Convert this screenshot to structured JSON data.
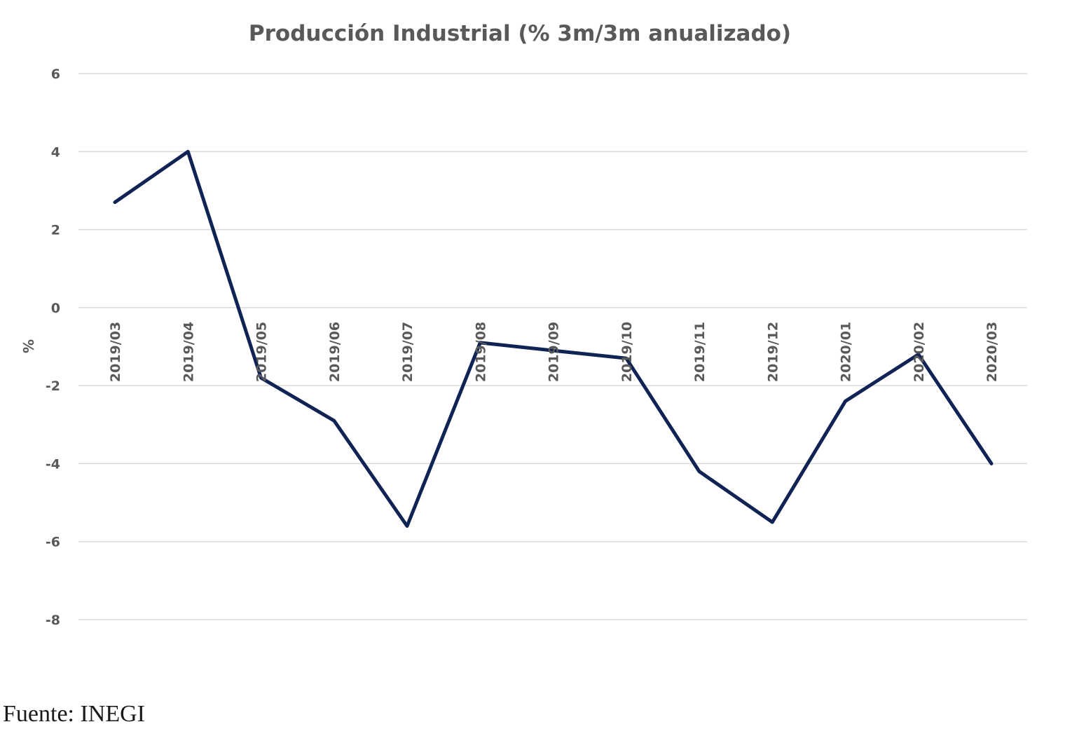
{
  "chart_data": {
    "type": "line",
    "title": "Producción Industrial (% 3m/3m anualizado)",
    "ylabel": "%",
    "xlabel": "",
    "ylim": [
      -8,
      6
    ],
    "yticks": [
      "6",
      "4",
      "2",
      "0",
      "-2",
      "-4",
      "-6",
      "-8"
    ],
    "ytick_values": [
      6,
      4,
      2,
      0,
      -2,
      -4,
      -6,
      -8
    ],
    "grid": true,
    "categories": [
      "2019/03",
      "2019/04",
      "2019/05",
      "2019/06",
      "2019/07",
      "2019/08",
      "2019/09",
      "2019/10",
      "2019/11",
      "2019/12",
      "2020/01",
      "2020/02",
      "2020/03"
    ],
    "series": [
      {
        "values": [
          2.7,
          4.0,
          -1.8,
          -2.9,
          -5.6,
          -0.9,
          -1.1,
          -1.3,
          -4.2,
          -5.5,
          -2.4,
          -1.2,
          -4.0
        ],
        "color": "#0f2354"
      }
    ]
  },
  "source": "Fuente: INEGI"
}
